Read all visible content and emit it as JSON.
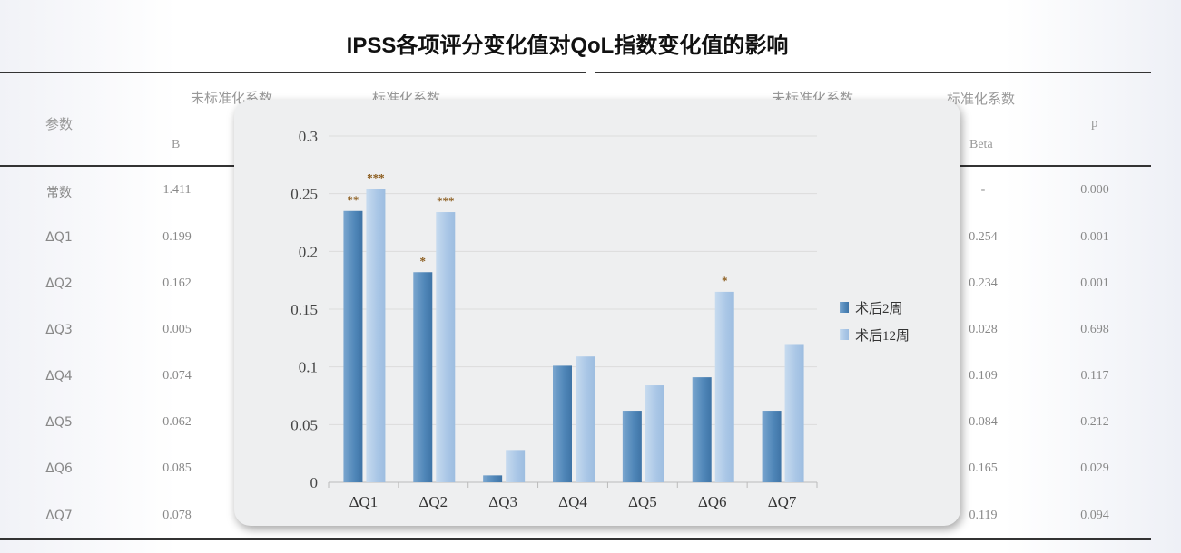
{
  "title": "IPSS各项评分变化值对QoL指数变化值的影响",
  "table": {
    "headers": {
      "param": "参数",
      "unstd_left": "未标准化系数",
      "std_left": "标准化系数",
      "b": "B",
      "unstd_right": "未标准化系数",
      "std_right": "标准化系数",
      "beta": "Beta",
      "p": "p"
    },
    "rows": [
      {
        "param": "常数",
        "b": "1.411",
        "beta": "-",
        "p": "0.000"
      },
      {
        "param": "ΔQ1",
        "b": "0.199",
        "beta": "0.254",
        "p": "0.001"
      },
      {
        "param": "ΔQ2",
        "b": "0.162",
        "beta": "0.234",
        "p": "0.001"
      },
      {
        "param": "ΔQ3",
        "b": "0.005",
        "beta": "0.028",
        "p": "0.698"
      },
      {
        "param": "ΔQ4",
        "b": "0.074",
        "beta": "0.109",
        "p": "0.117"
      },
      {
        "param": "ΔQ5",
        "b": "0.062",
        "beta": "0.084",
        "p": "0.212"
      },
      {
        "param": "ΔQ6",
        "b": "0.085",
        "beta": "0.165",
        "p": "0.029"
      },
      {
        "param": "ΔQ7",
        "b": "0.078",
        "beta": "0.119",
        "p": "0.094"
      }
    ]
  },
  "chart_data": {
    "type": "bar",
    "title": "",
    "categories": [
      "ΔQ1",
      "ΔQ2",
      "ΔQ3",
      "ΔQ4",
      "ΔQ5",
      "ΔQ6",
      "ΔQ7"
    ],
    "series": [
      {
        "name": "术后2周",
        "color": "#4f86b8",
        "values": [
          0.235,
          0.182,
          0.006,
          0.101,
          0.062,
          0.091,
          0.062
        ],
        "annotations": [
          "**",
          "*",
          "",
          "",
          "",
          "",
          ""
        ]
      },
      {
        "name": "术后12周",
        "color": "#a9c6e6",
        "values": [
          0.254,
          0.234,
          0.028,
          0.109,
          0.084,
          0.165,
          0.119
        ],
        "annotations": [
          "***",
          "***",
          "",
          "",
          "",
          "*",
          ""
        ]
      }
    ],
    "ylim": [
      0,
      0.3
    ],
    "yticks": [
      "0",
      "0.05",
      "0.1",
      "0.15",
      "0.2",
      "0.25",
      "0.3"
    ],
    "grid": true,
    "legend": "right",
    "annotation_color": "#8a5a1a"
  }
}
